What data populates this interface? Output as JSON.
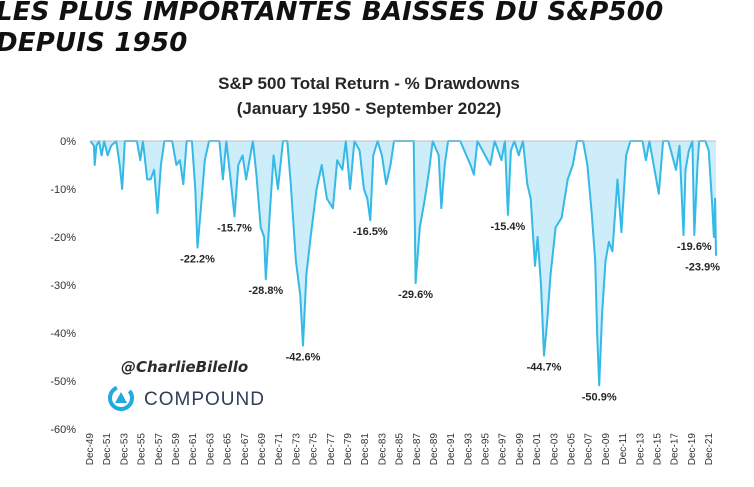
{
  "headline": {
    "line1": "LES PLUS IMPORTANTES BAISSES DU S&P500",
    "line2": "DEPUIS 1950"
  },
  "branding": {
    "handle": "@CharlieBilello",
    "company": "COMPOUND",
    "logo_icon": "compound-logo-icon"
  },
  "colors": {
    "series": "#35b9e6",
    "axis": "#bfbfbf",
    "logo": "#22a9df",
    "text": "#262626"
  },
  "chart_data": {
    "type": "area",
    "title": "S&P 500 Total Return - % Drawdowns",
    "subtitle": "(January 1950 - September 2022)",
    "xlabel": "",
    "ylabel": "",
    "ylim": [
      -60,
      0
    ],
    "grid": false,
    "legend": "none",
    "yticks": [
      {
        "value": 0,
        "label": "0%"
      },
      {
        "value": -10,
        "label": "-10%"
      },
      {
        "value": -20,
        "label": "-20%"
      },
      {
        "value": -30,
        "label": "-30%"
      },
      {
        "value": -40,
        "label": "-40%"
      },
      {
        "value": -50,
        "label": "-50%"
      },
      {
        "value": -60,
        "label": "-60%"
      }
    ],
    "xlim": [
      1949.95,
      2022.75
    ],
    "xticks": [
      {
        "value": 1949.95,
        "label": "Dec-49"
      },
      {
        "value": 1951.95,
        "label": "Dec-51"
      },
      {
        "value": 1953.95,
        "label": "Dec-53"
      },
      {
        "value": 1955.95,
        "label": "Dec-55"
      },
      {
        "value": 1957.95,
        "label": "Dec-57"
      },
      {
        "value": 1959.95,
        "label": "Dec-59"
      },
      {
        "value": 1961.95,
        "label": "Dec-61"
      },
      {
        "value": 1963.95,
        "label": "Dec-63"
      },
      {
        "value": 1965.95,
        "label": "Dec-65"
      },
      {
        "value": 1967.95,
        "label": "Dec-67"
      },
      {
        "value": 1969.95,
        "label": "Dec-69"
      },
      {
        "value": 1971.95,
        "label": "Dec-71"
      },
      {
        "value": 1973.95,
        "label": "Dec-73"
      },
      {
        "value": 1975.95,
        "label": "Dec-75"
      },
      {
        "value": 1977.95,
        "label": "Dec-77"
      },
      {
        "value": 1979.95,
        "label": "Dec-79"
      },
      {
        "value": 1981.95,
        "label": "Dec-81"
      },
      {
        "value": 1983.95,
        "label": "Dec-83"
      },
      {
        "value": 1985.95,
        "label": "Dec-85"
      },
      {
        "value": 1987.95,
        "label": "Dec-87"
      },
      {
        "value": 1989.95,
        "label": "Dec-89"
      },
      {
        "value": 1991.95,
        "label": "Dec-91"
      },
      {
        "value": 1993.95,
        "label": "Dec-93"
      },
      {
        "value": 1995.95,
        "label": "Dec-95"
      },
      {
        "value": 1997.95,
        "label": "Dec-97"
      },
      {
        "value": 1999.95,
        "label": "Dec-99"
      },
      {
        "value": 2001.95,
        "label": "Dec-01"
      },
      {
        "value": 2003.95,
        "label": "Dec-03"
      },
      {
        "value": 2005.95,
        "label": "Dec-05"
      },
      {
        "value": 2007.95,
        "label": "Dec-07"
      },
      {
        "value": 2009.95,
        "label": "Dec-09"
      },
      {
        "value": 2011.95,
        "label": "Dec-11"
      },
      {
        "value": 2013.95,
        "label": "Dec-13"
      },
      {
        "value": 2015.95,
        "label": "Dec-15"
      },
      {
        "value": 2017.95,
        "label": "Dec-17"
      },
      {
        "value": 2019.95,
        "label": "Dec-19"
      },
      {
        "value": 2021.95,
        "label": "Dec-21"
      }
    ],
    "series": [
      {
        "name": "S&P 500 Total Return Drawdown (%)",
        "points": [
          [
            1950.0,
            0
          ],
          [
            1950.4,
            -1
          ],
          [
            1950.5,
            -5
          ],
          [
            1950.7,
            -1
          ],
          [
            1951.0,
            0
          ],
          [
            1951.3,
            -3
          ],
          [
            1951.6,
            0
          ],
          [
            1952.0,
            -3
          ],
          [
            1952.4,
            -1
          ],
          [
            1953.0,
            0
          ],
          [
            1953.4,
            -5
          ],
          [
            1953.7,
            -10
          ],
          [
            1954.0,
            0
          ],
          [
            1955.4,
            0
          ],
          [
            1955.8,
            -4
          ],
          [
            1956.1,
            0
          ],
          [
            1956.6,
            -8
          ],
          [
            1957.0,
            -8
          ],
          [
            1957.4,
            -6
          ],
          [
            1957.8,
            -15
          ],
          [
            1958.2,
            -5
          ],
          [
            1958.6,
            0
          ],
          [
            1959.5,
            0
          ],
          [
            1960.0,
            -5
          ],
          [
            1960.4,
            -4
          ],
          [
            1960.8,
            -9
          ],
          [
            1961.2,
            0
          ],
          [
            1961.8,
            0
          ],
          [
            1962.2,
            -10
          ],
          [
            1962.45,
            -22.2
          ],
          [
            1962.8,
            -15
          ],
          [
            1963.3,
            -4
          ],
          [
            1963.8,
            0
          ],
          [
            1965.0,
            0
          ],
          [
            1965.4,
            -8
          ],
          [
            1965.8,
            0
          ],
          [
            1966.3,
            -8
          ],
          [
            1966.75,
            -15.7
          ],
          [
            1967.2,
            -5
          ],
          [
            1967.7,
            -3
          ],
          [
            1968.1,
            -8
          ],
          [
            1968.7,
            -2
          ],
          [
            1968.9,
            0
          ],
          [
            1969.3,
            -7
          ],
          [
            1969.8,
            -18
          ],
          [
            1970.2,
            -20
          ],
          [
            1970.4,
            -28.8
          ],
          [
            1970.9,
            -14
          ],
          [
            1971.3,
            -3
          ],
          [
            1971.8,
            -10
          ],
          [
            1972.4,
            0
          ],
          [
            1972.9,
            0
          ],
          [
            1973.3,
            -9
          ],
          [
            1973.9,
            -25
          ],
          [
            1974.4,
            -32
          ],
          [
            1974.72,
            -42.6
          ],
          [
            1975.1,
            -28
          ],
          [
            1975.6,
            -20
          ],
          [
            1976.3,
            -10
          ],
          [
            1976.9,
            -5
          ],
          [
            1977.5,
            -12
          ],
          [
            1978.2,
            -14
          ],
          [
            1978.7,
            -4
          ],
          [
            1979.3,
            -6
          ],
          [
            1979.7,
            0
          ],
          [
            1980.2,
            -10
          ],
          [
            1980.7,
            0
          ],
          [
            1981.3,
            -2
          ],
          [
            1981.8,
            -10
          ],
          [
            1982.2,
            -12
          ],
          [
            1982.55,
            -16.5
          ],
          [
            1982.9,
            -3
          ],
          [
            1983.4,
            0
          ],
          [
            1983.9,
            -3
          ],
          [
            1984.4,
            -9
          ],
          [
            1984.9,
            -5
          ],
          [
            1985.3,
            0
          ],
          [
            1987.6,
            0
          ],
          [
            1987.82,
            -29.6
          ],
          [
            1988.3,
            -18
          ],
          [
            1988.9,
            -12
          ],
          [
            1989.4,
            -6
          ],
          [
            1989.8,
            0
          ],
          [
            1990.5,
            -3
          ],
          [
            1990.8,
            -14
          ],
          [
            1991.2,
            -5
          ],
          [
            1991.6,
            0
          ],
          [
            1993.0,
            0
          ],
          [
            1994.2,
            -5
          ],
          [
            1994.6,
            -7
          ],
          [
            1995.0,
            0
          ],
          [
            1996.5,
            -5
          ],
          [
            1997.0,
            0
          ],
          [
            1997.8,
            -4
          ],
          [
            1998.2,
            0
          ],
          [
            1998.55,
            -15.4
          ],
          [
            1998.9,
            -2
          ],
          [
            1999.3,
            0
          ],
          [
            1999.8,
            -3
          ],
          [
            2000.3,
            0
          ],
          [
            2000.8,
            -9
          ],
          [
            2001.2,
            -12
          ],
          [
            2001.7,
            -26
          ],
          [
            2002.0,
            -20
          ],
          [
            2002.4,
            -30
          ],
          [
            2002.75,
            -44.7
          ],
          [
            2003.1,
            -38
          ],
          [
            2003.5,
            -28
          ],
          [
            2004.1,
            -18
          ],
          [
            2004.8,
            -16
          ],
          [
            2005.5,
            -8
          ],
          [
            2006.1,
            -5
          ],
          [
            2006.6,
            0
          ],
          [
            2007.3,
            0
          ],
          [
            2007.8,
            -5
          ],
          [
            2008.3,
            -15
          ],
          [
            2008.7,
            -25
          ],
          [
            2008.95,
            -41
          ],
          [
            2009.17,
            -50.9
          ],
          [
            2009.5,
            -36
          ],
          [
            2009.9,
            -25
          ],
          [
            2010.3,
            -21
          ],
          [
            2010.7,
            -23
          ],
          [
            2011.3,
            -8
          ],
          [
            2011.75,
            -19
          ],
          [
            2012.3,
            -3
          ],
          [
            2012.8,
            0
          ],
          [
            2014.2,
            0
          ],
          [
            2014.6,
            -4
          ],
          [
            2015.0,
            0
          ],
          [
            2015.7,
            -7
          ],
          [
            2016.1,
            -11
          ],
          [
            2016.6,
            0
          ],
          [
            2017.2,
            0
          ],
          [
            2018.1,
            -6
          ],
          [
            2018.5,
            -1
          ],
          [
            2018.97,
            -19.6
          ],
          [
            2019.2,
            -6
          ],
          [
            2019.6,
            -2
          ],
          [
            2020.0,
            0
          ],
          [
            2020.23,
            -19.6
          ],
          [
            2020.6,
            -5
          ],
          [
            2020.8,
            0
          ],
          [
            2021.5,
            0
          ],
          [
            2021.9,
            -2
          ],
          [
            2022.3,
            -13
          ],
          [
            2022.5,
            -20
          ],
          [
            2022.65,
            -12
          ],
          [
            2022.75,
            -23.9
          ]
        ]
      }
    ],
    "annotations": [
      {
        "label": "-22.2%",
        "x": 1962.45,
        "y": -22.2
      },
      {
        "label": "-15.7%",
        "x": 1966.75,
        "y": -15.7
      },
      {
        "label": "-28.8%",
        "x": 1970.4,
        "y": -28.8
      },
      {
        "label": "-42.6%",
        "x": 1974.72,
        "y": -42.6
      },
      {
        "label": "-16.5%",
        "x": 1982.55,
        "y": -16.5
      },
      {
        "label": "-29.6%",
        "x": 1987.82,
        "y": -29.6
      },
      {
        "label": "-15.4%",
        "x": 1998.55,
        "y": -15.4
      },
      {
        "label": "-44.7%",
        "x": 2002.75,
        "y": -44.7
      },
      {
        "label": "-50.9%",
        "x": 2009.17,
        "y": -50.9
      },
      {
        "label": "-19.6%",
        "x": 2020.23,
        "y": -19.6
      },
      {
        "label": "-23.9%",
        "x": 2022.75,
        "y": -23.9
      }
    ]
  }
}
